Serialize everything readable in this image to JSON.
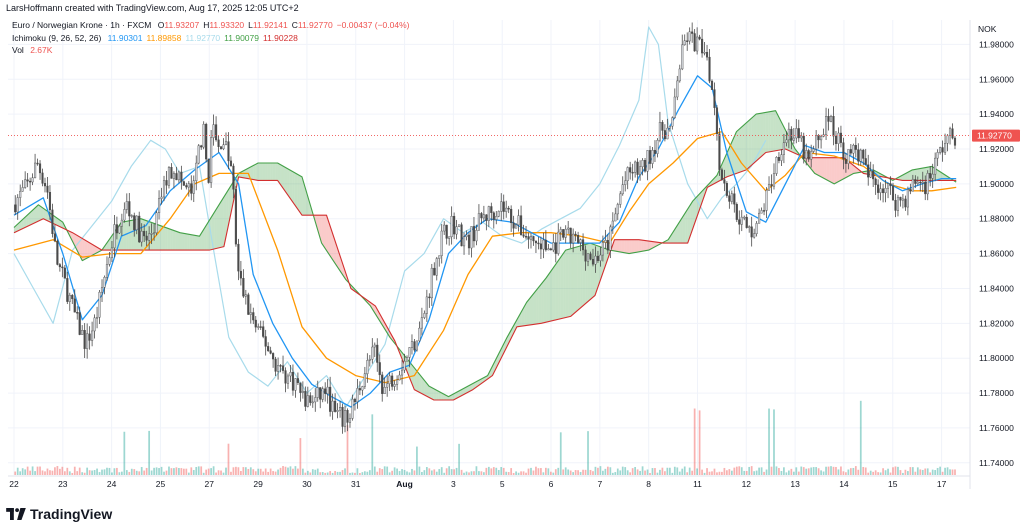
{
  "attribution": "LarsHoffmann created with TradingView.com, Aug 17, 2025 12:05 UTC+2",
  "legend": {
    "title": "Euro / Norwegian Krone · 1h · FXCM",
    "ohlc": [
      {
        "k": "O",
        "v": "11.93207"
      },
      {
        "k": "H",
        "v": "11.93320"
      },
      {
        "k": "L",
        "v": "11.92141"
      },
      {
        "k": "C",
        "v": "11.92770"
      },
      {
        "k": "",
        "v": "−0.00437 (−0.04%)"
      }
    ],
    "ichimoku_label": "Ichimoku (9, 26, 52, 26)",
    "ichimoku_values": [
      {
        "v": "11.90301",
        "color": "#2196f3"
      },
      {
        "v": "11.89858",
        "color": "#ff9800"
      },
      {
        "v": "11.92770",
        "color": "#a8dbeb"
      },
      {
        "v": "11.90079",
        "color": "#43a047"
      },
      {
        "v": "11.90228",
        "color": "#d32f2f"
      }
    ],
    "vol_label": "Vol",
    "vol_value": "2.67K"
  },
  "currency": "NOK",
  "brand": "TradingView",
  "colors": {
    "up": "#26a69a",
    "down": "#ef5350",
    "tenkan": "#2196f3",
    "kijun": "#ff9800",
    "chikou": "#a8dbeb",
    "spanA": "#43a047",
    "spanB": "#d32f2f",
    "candle": "#4a4a4a"
  },
  "chart_data": {
    "type": "candlestick",
    "symbol": "EURNOK",
    "timeframe": "1h",
    "y_ticks": [
      "11.98000",
      "11.96000",
      "11.94000",
      "11.92000",
      "11.90000",
      "11.88000",
      "11.86000",
      "11.84000",
      "11.82000",
      "11.80000",
      "11.78000",
      "11.76000",
      "11.74000"
    ],
    "ylim": [
      11.733,
      11.994
    ],
    "last_price": "11.92770",
    "x_labels": [
      "22",
      "23",
      "24",
      "25",
      "27",
      "29",
      "30",
      "31",
      "Aug",
      "3",
      "5",
      "6",
      "7",
      "8",
      "11",
      "12",
      "13",
      "14",
      "15",
      "17"
    ],
    "price_path": [
      [
        0,
        11.888
      ],
      [
        0.3,
        11.899
      ],
      [
        0.5,
        11.912
      ],
      [
        0.7,
        11.898
      ],
      [
        0.9,
        11.856
      ],
      [
        1.1,
        11.84
      ],
      [
        1.3,
        11.822
      ],
      [
        1.5,
        11.808
      ],
      [
        1.7,
        11.822
      ],
      [
        1.9,
        11.85
      ],
      [
        2.1,
        11.875
      ],
      [
        2.3,
        11.89
      ],
      [
        2.5,
        11.878
      ],
      [
        2.7,
        11.866
      ],
      [
        2.9,
        11.874
      ],
      [
        3.1,
        11.9
      ],
      [
        3.3,
        11.91
      ],
      [
        3.5,
        11.898
      ],
      [
        3.7,
        11.895
      ],
      [
        3.8,
        11.918
      ],
      [
        3.9,
        11.932
      ],
      [
        4.0,
        11.902
      ],
      [
        4.1,
        11.935
      ],
      [
        4.2,
        11.918
      ],
      [
        4.3,
        11.928
      ],
      [
        4.5,
        11.905
      ],
      [
        4.6,
        11.85
      ],
      [
        4.8,
        11.83
      ],
      [
        5.0,
        11.816
      ],
      [
        5.2,
        11.808
      ],
      [
        5.4,
        11.796
      ],
      [
        5.6,
        11.79
      ],
      [
        5.8,
        11.786
      ],
      [
        6.0,
        11.775
      ],
      [
        6.2,
        11.776
      ],
      [
        6.4,
        11.782
      ],
      [
        6.6,
        11.768
      ],
      [
        6.8,
        11.764
      ],
      [
        7.0,
        11.775
      ],
      [
        7.2,
        11.792
      ],
      [
        7.4,
        11.804
      ],
      [
        7.6,
        11.782
      ],
      [
        7.8,
        11.79
      ],
      [
        8.0,
        11.798
      ],
      [
        8.2,
        11.808
      ],
      [
        8.4,
        11.822
      ],
      [
        8.6,
        11.85
      ],
      [
        8.8,
        11.87
      ],
      [
        9.0,
        11.878
      ],
      [
        9.3,
        11.866
      ],
      [
        9.6,
        11.88
      ],
      [
        10.0,
        11.888
      ],
      [
        10.3,
        11.878
      ],
      [
        10.6,
        11.868
      ],
      [
        11.0,
        11.862
      ],
      [
        11.3,
        11.87
      ],
      [
        11.6,
        11.866
      ],
      [
        11.9,
        11.856
      ],
      [
        12.2,
        11.866
      ],
      [
        12.5,
        11.9
      ],
      [
        12.7,
        11.908
      ],
      [
        12.9,
        11.908
      ],
      [
        13.1,
        11.92
      ],
      [
        13.3,
        11.932
      ],
      [
        13.5,
        11.93
      ],
      [
        13.6,
        11.96
      ],
      [
        13.8,
        11.985
      ],
      [
        14.0,
        11.98
      ],
      [
        14.2,
        11.978
      ],
      [
        14.4,
        11.94
      ],
      [
        14.5,
        11.905
      ],
      [
        14.7,
        11.892
      ],
      [
        14.9,
        11.88
      ],
      [
        15.1,
        11.872
      ],
      [
        15.3,
        11.88
      ],
      [
        15.5,
        11.898
      ],
      [
        15.7,
        11.92
      ],
      [
        15.9,
        11.93
      ],
      [
        16.1,
        11.925
      ],
      [
        16.3,
        11.912
      ],
      [
        16.5,
        11.926
      ],
      [
        16.7,
        11.938
      ],
      [
        16.9,
        11.925
      ],
      [
        17.1,
        11.915
      ],
      [
        17.3,
        11.92
      ],
      [
        17.5,
        11.905
      ],
      [
        17.7,
        11.9
      ],
      [
        17.9,
        11.898
      ],
      [
        18.1,
        11.89
      ],
      [
        18.3,
        11.892
      ],
      [
        18.5,
        11.902
      ],
      [
        18.7,
        11.9
      ],
      [
        18.9,
        11.912
      ],
      [
        19.1,
        11.925
      ],
      [
        19.3,
        11.928
      ]
    ],
    "tenkan": [
      [
        0,
        11.882
      ],
      [
        0.6,
        11.892
      ],
      [
        1.0,
        11.86
      ],
      [
        1.4,
        11.822
      ],
      [
        1.8,
        11.836
      ],
      [
        2.2,
        11.87
      ],
      [
        2.7,
        11.876
      ],
      [
        3.2,
        11.896
      ],
      [
        3.7,
        11.908
      ],
      [
        4.2,
        11.918
      ],
      [
        4.6,
        11.9
      ],
      [
        4.9,
        11.848
      ],
      [
        5.3,
        11.82
      ],
      [
        5.7,
        11.8
      ],
      [
        6.1,
        11.785
      ],
      [
        6.5,
        11.778
      ],
      [
        6.9,
        11.772
      ],
      [
        7.3,
        11.78
      ],
      [
        7.7,
        11.792
      ],
      [
        8.1,
        11.796
      ],
      [
        8.5,
        11.822
      ],
      [
        8.9,
        11.86
      ],
      [
        9.3,
        11.872
      ],
      [
        9.7,
        11.88
      ],
      [
        10.2,
        11.878
      ],
      [
        10.6,
        11.872
      ],
      [
        11.0,
        11.866
      ],
      [
        11.5,
        11.866
      ],
      [
        12.0,
        11.866
      ],
      [
        12.4,
        11.878
      ],
      [
        12.8,
        11.904
      ],
      [
        13.2,
        11.92
      ],
      [
        13.6,
        11.942
      ],
      [
        14.0,
        11.962
      ],
      [
        14.3,
        11.955
      ],
      [
        14.6,
        11.918
      ],
      [
        15.0,
        11.884
      ],
      [
        15.4,
        11.878
      ],
      [
        15.8,
        11.9
      ],
      [
        16.2,
        11.922
      ],
      [
        16.6,
        11.918
      ],
      [
        17.0,
        11.918
      ],
      [
        17.4,
        11.912
      ],
      [
        17.8,
        11.902
      ],
      [
        18.2,
        11.896
      ],
      [
        18.6,
        11.9
      ],
      [
        19.0,
        11.903
      ],
      [
        19.3,
        11.903
      ]
    ],
    "kijun": [
      [
        0,
        11.862
      ],
      [
        0.8,
        11.868
      ],
      [
        1.4,
        11.858
      ],
      [
        2.0,
        11.86
      ],
      [
        2.6,
        11.86
      ],
      [
        3.2,
        11.88
      ],
      [
        3.7,
        11.9
      ],
      [
        4.2,
        11.906
      ],
      [
        4.8,
        11.906
      ],
      [
        5.4,
        11.862
      ],
      [
        5.9,
        11.818
      ],
      [
        6.4,
        11.8
      ],
      [
        7.0,
        11.79
      ],
      [
        7.6,
        11.786
      ],
      [
        8.2,
        11.79
      ],
      [
        8.8,
        11.816
      ],
      [
        9.3,
        11.848
      ],
      [
        9.8,
        11.87
      ],
      [
        10.4,
        11.872
      ],
      [
        11.0,
        11.872
      ],
      [
        11.6,
        11.87
      ],
      [
        12.2,
        11.866
      ],
      [
        12.6,
        11.884
      ],
      [
        13.0,
        11.9
      ],
      [
        13.5,
        11.912
      ],
      [
        14.0,
        11.926
      ],
      [
        14.5,
        11.93
      ],
      [
        14.9,
        11.912
      ],
      [
        15.4,
        11.896
      ],
      [
        15.8,
        11.905
      ],
      [
        16.2,
        11.918
      ],
      [
        16.8,
        11.916
      ],
      [
        17.4,
        11.91
      ],
      [
        17.9,
        11.9
      ],
      [
        18.4,
        11.896
      ],
      [
        18.8,
        11.896
      ],
      [
        19.3,
        11.898
      ]
    ],
    "chikou": [
      [
        0,
        11.86
      ],
      [
        0.4,
        11.84
      ],
      [
        0.8,
        11.82
      ],
      [
        1.2,
        11.862
      ],
      [
        1.6,
        11.876
      ],
      [
        2.0,
        11.89
      ],
      [
        2.4,
        11.91
      ],
      [
        2.8,
        11.925
      ],
      [
        3.1,
        11.92
      ],
      [
        3.4,
        11.906
      ],
      [
        3.8,
        11.91
      ],
      [
        4.1,
        11.86
      ],
      [
        4.4,
        11.812
      ],
      [
        4.8,
        11.792
      ],
      [
        5.2,
        11.784
      ],
      [
        5.6,
        11.798
      ],
      [
        6.0,
        11.78
      ],
      [
        6.4,
        11.79
      ],
      [
        6.8,
        11.772
      ],
      [
        7.2,
        11.79
      ],
      [
        7.6,
        11.808
      ],
      [
        8.0,
        11.85
      ],
      [
        8.4,
        11.86
      ],
      [
        8.8,
        11.88
      ],
      [
        9.2,
        11.872
      ],
      [
        9.6,
        11.878
      ],
      [
        10.0,
        11.87
      ],
      [
        10.4,
        11.866
      ],
      [
        10.8,
        11.874
      ],
      [
        11.2,
        11.88
      ],
      [
        11.6,
        11.886
      ],
      [
        12.0,
        11.9
      ],
      [
        12.4,
        11.922
      ],
      [
        12.8,
        11.948
      ],
      [
        13.0,
        11.99
      ],
      [
        13.2,
        11.98
      ],
      [
        13.4,
        11.935
      ],
      [
        13.8,
        11.9
      ],
      [
        14.2,
        11.88
      ],
      [
        14.5,
        11.892
      ],
      [
        14.8,
        11.9
      ],
      [
        15.1,
        11.91
      ],
      [
        15.4,
        11.925
      ]
    ],
    "span_a": [
      [
        0,
        11.875
      ],
      [
        0.5,
        11.888
      ],
      [
        1.0,
        11.878
      ],
      [
        1.4,
        11.856
      ],
      [
        1.8,
        11.862
      ],
      [
        2.2,
        11.878
      ],
      [
        2.6,
        11.88
      ],
      [
        3.0,
        11.876
      ],
      [
        3.4,
        11.872
      ],
      [
        3.8,
        11.87
      ],
      [
        4.2,
        11.888
      ],
      [
        4.6,
        11.906
      ],
      [
        5.0,
        11.912
      ],
      [
        5.4,
        11.912
      ],
      [
        5.9,
        11.904
      ],
      [
        6.3,
        11.866
      ],
      [
        6.8,
        11.845
      ],
      [
        7.3,
        11.83
      ],
      [
        7.7,
        11.812
      ],
      [
        8.1,
        11.798
      ],
      [
        8.5,
        11.784
      ],
      [
        8.9,
        11.778
      ],
      [
        9.3,
        11.784
      ],
      [
        9.7,
        11.79
      ],
      [
        10.1,
        11.812
      ],
      [
        10.5,
        11.832
      ],
      [
        10.9,
        11.846
      ],
      [
        11.3,
        11.862
      ],
      [
        11.8,
        11.866
      ],
      [
        12.2,
        11.862
      ],
      [
        12.6,
        11.86
      ],
      [
        13.0,
        11.862
      ],
      [
        13.4,
        11.868
      ],
      [
        13.9,
        11.89
      ],
      [
        14.4,
        11.905
      ],
      [
        14.8,
        11.93
      ],
      [
        15.2,
        11.94
      ],
      [
        15.6,
        11.942
      ],
      [
        16.0,
        11.92
      ],
      [
        16.4,
        11.906
      ],
      [
        16.8,
        11.9
      ],
      [
        17.2,
        11.906
      ],
      [
        17.6,
        11.908
      ],
      [
        18.0,
        11.902
      ],
      [
        18.4,
        11.908
      ],
      [
        18.8,
        11.91
      ],
      [
        19.3,
        11.901
      ]
    ],
    "span_b": [
      [
        0,
        11.872
      ],
      [
        0.6,
        11.88
      ],
      [
        1.2,
        11.872
      ],
      [
        1.8,
        11.862
      ],
      [
        2.4,
        11.862
      ],
      [
        3.0,
        11.862
      ],
      [
        3.6,
        11.862
      ],
      [
        4.0,
        11.862
      ],
      [
        4.3,
        11.864
      ],
      [
        4.6,
        11.904
      ],
      [
        5.0,
        11.902
      ],
      [
        5.4,
        11.902
      ],
      [
        5.9,
        11.882
      ],
      [
        6.4,
        11.882
      ],
      [
        6.9,
        11.84
      ],
      [
        7.4,
        11.83
      ],
      [
        7.8,
        11.81
      ],
      [
        8.2,
        11.782
      ],
      [
        8.6,
        11.776
      ],
      [
        9.0,
        11.776
      ],
      [
        9.4,
        11.782
      ],
      [
        9.8,
        11.79
      ],
      [
        10.3,
        11.818
      ],
      [
        10.8,
        11.82
      ],
      [
        11.4,
        11.824
      ],
      [
        11.9,
        11.836
      ],
      [
        12.3,
        11.868
      ],
      [
        12.8,
        11.868
      ],
      [
        13.3,
        11.866
      ],
      [
        13.8,
        11.866
      ],
      [
        14.2,
        11.898
      ],
      [
        14.6,
        11.904
      ],
      [
        15.0,
        11.908
      ],
      [
        15.4,
        11.918
      ],
      [
        15.8,
        11.92
      ],
      [
        16.2,
        11.915
      ],
      [
        16.6,
        11.915
      ],
      [
        17.0,
        11.915
      ],
      [
        17.4,
        11.906
      ],
      [
        17.8,
        11.904
      ],
      [
        18.2,
        11.902
      ],
      [
        18.6,
        11.902
      ],
      [
        19.3,
        11.902
      ]
    ]
  }
}
